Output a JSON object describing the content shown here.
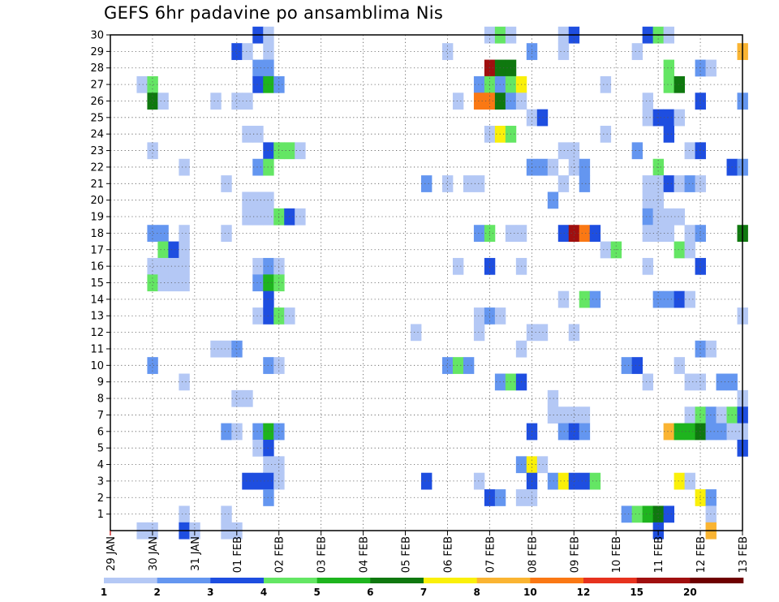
{
  "chart_data": {
    "type": "heatmap",
    "title": "GEFS 6hr padavine po ansamblima Nis",
    "y_ticks": [
      "1",
      "2",
      "3",
      "4",
      "5",
      "6",
      "7",
      "8",
      "9",
      "10",
      "11",
      "12",
      "13",
      "14",
      "15",
      "16",
      "17",
      "18",
      "19",
      "20",
      "21",
      "22",
      "23",
      "24",
      "25",
      "26",
      "27",
      "28",
      "29",
      "30"
    ],
    "x_ticks": [
      "29 JAN",
      "30 JAN",
      "31 JAN",
      "01 FEB",
      "02 FEB",
      "03 FEB",
      "04 FEB",
      "05 FEB",
      "06 FEB",
      "07 FEB",
      "08 FEB",
      "09 FEB",
      "10 FEB",
      "11 FEB",
      "12 FEB",
      "13 FEB"
    ],
    "x_range_steps": [
      0,
      60
    ],
    "y_range_members": [
      0,
      30
    ],
    "legend_colors": [
      "#b4c8f5",
      "#6496f0",
      "#1e4ee0",
      "#64e664",
      "#1eb41e",
      "#0f780f",
      "#faf00a",
      "#fab432",
      "#fa7814",
      "#e6321e",
      "#a00f0f",
      "#6e0000"
    ],
    "legend_labels": [
      "1",
      "2",
      "3",
      "4",
      "5",
      "6",
      "7",
      "8",
      "10",
      "12",
      "15",
      "20"
    ],
    "cells": [
      [
        30,
        14,
        3
      ],
      [
        30,
        15,
        1
      ],
      [
        30,
        36,
        1
      ],
      [
        30,
        37,
        4
      ],
      [
        30,
        38,
        1
      ],
      [
        30,
        43,
        1
      ],
      [
        30,
        44,
        3
      ],
      [
        30,
        51,
        3
      ],
      [
        30,
        52,
        4
      ],
      [
        30,
        53,
        1
      ],
      [
        29,
        12,
        3
      ],
      [
        29,
        13,
        1
      ],
      [
        29,
        15,
        1
      ],
      [
        29,
        32,
        1
      ],
      [
        29,
        40,
        2
      ],
      [
        29,
        43,
        1
      ],
      [
        29,
        50,
        1
      ],
      [
        29,
        60,
        8
      ],
      [
        28,
        14,
        2
      ],
      [
        28,
        15,
        2
      ],
      [
        28,
        36,
        11
      ],
      [
        28,
        37,
        6
      ],
      [
        28,
        38,
        6
      ],
      [
        28,
        53,
        4
      ],
      [
        28,
        56,
        2
      ],
      [
        28,
        57,
        1
      ],
      [
        27,
        3,
        1
      ],
      [
        27,
        4,
        4
      ],
      [
        27,
        14,
        3
      ],
      [
        27,
        15,
        5
      ],
      [
        27,
        16,
        2
      ],
      [
        27,
        35,
        2
      ],
      [
        27,
        36,
        4
      ],
      [
        27,
        37,
        2
      ],
      [
        27,
        38,
        4
      ],
      [
        27,
        39,
        7
      ],
      [
        27,
        47,
        1
      ],
      [
        27,
        53,
        4
      ],
      [
        27,
        54,
        6
      ],
      [
        26,
        4,
        6
      ],
      [
        26,
        5,
        1
      ],
      [
        26,
        10,
        1
      ],
      [
        26,
        12,
        1
      ],
      [
        26,
        13,
        1
      ],
      [
        26,
        33,
        1
      ],
      [
        26,
        35,
        9
      ],
      [
        26,
        36,
        9
      ],
      [
        26,
        37,
        6
      ],
      [
        26,
        38,
        2
      ],
      [
        26,
        39,
        1
      ],
      [
        26,
        51,
        1
      ],
      [
        26,
        56,
        3
      ],
      [
        26,
        60,
        2
      ],
      [
        25,
        40,
        1
      ],
      [
        25,
        41,
        3
      ],
      [
        25,
        51,
        1
      ],
      [
        25,
        52,
        3
      ],
      [
        25,
        53,
        3
      ],
      [
        25,
        54,
        1
      ],
      [
        24,
        13,
        1
      ],
      [
        24,
        14,
        1
      ],
      [
        24,
        36,
        1
      ],
      [
        24,
        37,
        7
      ],
      [
        24,
        38,
        4
      ],
      [
        24,
        47,
        1
      ],
      [
        24,
        53,
        3
      ],
      [
        23,
        4,
        1
      ],
      [
        23,
        15,
        3
      ],
      [
        23,
        16,
        4
      ],
      [
        23,
        17,
        4
      ],
      [
        23,
        18,
        1
      ],
      [
        23,
        43,
        1
      ],
      [
        23,
        44,
        1
      ],
      [
        23,
        50,
        2
      ],
      [
        23,
        55,
        1
      ],
      [
        23,
        56,
        3
      ],
      [
        22,
        7,
        1
      ],
      [
        22,
        14,
        2
      ],
      [
        22,
        15,
        4
      ],
      [
        22,
        40,
        2
      ],
      [
        22,
        41,
        2
      ],
      [
        22,
        42,
        1
      ],
      [
        22,
        44,
        1
      ],
      [
        22,
        45,
        2
      ],
      [
        22,
        52,
        4
      ],
      [
        22,
        59,
        3
      ],
      [
        22,
        60,
        2
      ],
      [
        21,
        11,
        1
      ],
      [
        21,
        30,
        2
      ],
      [
        21,
        32,
        1
      ],
      [
        21,
        34,
        1
      ],
      [
        21,
        35,
        1
      ],
      [
        21,
        43,
        1
      ],
      [
        21,
        45,
        2
      ],
      [
        21,
        51,
        1
      ],
      [
        21,
        52,
        1
      ],
      [
        21,
        53,
        3
      ],
      [
        21,
        54,
        1
      ],
      [
        21,
        55,
        2
      ],
      [
        21,
        56,
        1
      ],
      [
        20,
        13,
        1
      ],
      [
        20,
        14,
        1
      ],
      [
        20,
        15,
        1
      ],
      [
        20,
        42,
        2
      ],
      [
        20,
        51,
        1
      ],
      [
        20,
        52,
        1
      ],
      [
        19,
        13,
        1
      ],
      [
        19,
        14,
        1
      ],
      [
        19,
        15,
        1
      ],
      [
        19,
        16,
        4
      ],
      [
        19,
        17,
        3
      ],
      [
        19,
        18,
        1
      ],
      [
        19,
        51,
        2
      ],
      [
        19,
        52,
        1
      ],
      [
        19,
        53,
        1
      ],
      [
        19,
        54,
        1
      ],
      [
        18,
        4,
        2
      ],
      [
        18,
        5,
        2
      ],
      [
        18,
        7,
        1
      ],
      [
        18,
        11,
        1
      ],
      [
        18,
        35,
        2
      ],
      [
        18,
        36,
        4
      ],
      [
        18,
        38,
        1
      ],
      [
        18,
        39,
        1
      ],
      [
        18,
        43,
        3
      ],
      [
        18,
        44,
        11
      ],
      [
        18,
        45,
        9
      ],
      [
        18,
        46,
        3
      ],
      [
        18,
        51,
        1
      ],
      [
        18,
        52,
        1
      ],
      [
        18,
        53,
        1
      ],
      [
        18,
        55,
        1
      ],
      [
        18,
        56,
        2
      ],
      [
        18,
        60,
        6
      ],
      [
        17,
        5,
        4
      ],
      [
        17,
        6,
        3
      ],
      [
        17,
        7,
        1
      ],
      [
        17,
        47,
        1
      ],
      [
        17,
        48,
        4
      ],
      [
        17,
        54,
        4
      ],
      [
        17,
        55,
        1
      ],
      [
        16,
        4,
        1
      ],
      [
        16,
        5,
        1
      ],
      [
        16,
        6,
        1
      ],
      [
        16,
        7,
        1
      ],
      [
        16,
        14,
        1
      ],
      [
        16,
        15,
        2
      ],
      [
        16,
        16,
        1
      ],
      [
        16,
        33,
        1
      ],
      [
        16,
        36,
        3
      ],
      [
        16,
        39,
        1
      ],
      [
        16,
        51,
        1
      ],
      [
        16,
        56,
        3
      ],
      [
        15,
        4,
        4
      ],
      [
        15,
        5,
        1
      ],
      [
        15,
        6,
        1
      ],
      [
        15,
        7,
        1
      ],
      [
        15,
        14,
        2
      ],
      [
        15,
        15,
        5
      ],
      [
        15,
        16,
        4
      ],
      [
        14,
        15,
        3
      ],
      [
        14,
        43,
        1
      ],
      [
        14,
        45,
        4
      ],
      [
        14,
        46,
        2
      ],
      [
        14,
        52,
        2
      ],
      [
        14,
        53,
        2
      ],
      [
        14,
        54,
        3
      ],
      [
        14,
        55,
        1
      ],
      [
        13,
        14,
        1
      ],
      [
        13,
        15,
        3
      ],
      [
        13,
        16,
        4
      ],
      [
        13,
        17,
        1
      ],
      [
        13,
        35,
        1
      ],
      [
        13,
        36,
        2
      ],
      [
        13,
        37,
        1
      ],
      [
        13,
        60,
        1
      ],
      [
        12,
        29,
        1
      ],
      [
        12,
        35,
        1
      ],
      [
        12,
        40,
        1
      ],
      [
        12,
        41,
        1
      ],
      [
        12,
        44,
        1
      ],
      [
        11,
        10,
        1
      ],
      [
        11,
        11,
        1
      ],
      [
        11,
        12,
        2
      ],
      [
        11,
        39,
        1
      ],
      [
        11,
        56,
        2
      ],
      [
        11,
        57,
        1
      ],
      [
        10,
        4,
        2
      ],
      [
        10,
        15,
        2
      ],
      [
        10,
        16,
        1
      ],
      [
        10,
        32,
        2
      ],
      [
        10,
        33,
        4
      ],
      [
        10,
        34,
        2
      ],
      [
        10,
        49,
        2
      ],
      [
        10,
        50,
        3
      ],
      [
        10,
        54,
        1
      ],
      [
        9,
        7,
        1
      ],
      [
        9,
        37,
        2
      ],
      [
        9,
        38,
        4
      ],
      [
        9,
        39,
        3
      ],
      [
        9,
        51,
        1
      ],
      [
        9,
        55,
        1
      ],
      [
        9,
        56,
        1
      ],
      [
        9,
        58,
        2
      ],
      [
        9,
        59,
        2
      ],
      [
        8,
        12,
        1
      ],
      [
        8,
        13,
        1
      ],
      [
        8,
        42,
        1
      ],
      [
        8,
        60,
        1
      ],
      [
        7,
        42,
        1
      ],
      [
        7,
        43,
        1
      ],
      [
        7,
        44,
        1
      ],
      [
        7,
        45,
        1
      ],
      [
        7,
        55,
        1
      ],
      [
        7,
        56,
        4
      ],
      [
        7,
        57,
        2
      ],
      [
        7,
        58,
        1
      ],
      [
        7,
        59,
        4
      ],
      [
        7,
        60,
        3
      ],
      [
        6,
        11,
        2
      ],
      [
        6,
        12,
        1
      ],
      [
        6,
        14,
        2
      ],
      [
        6,
        15,
        5
      ],
      [
        6,
        16,
        2
      ],
      [
        6,
        40,
        3
      ],
      [
        6,
        43,
        2
      ],
      [
        6,
        44,
        3
      ],
      [
        6,
        45,
        2
      ],
      [
        6,
        53,
        8
      ],
      [
        6,
        54,
        5
      ],
      [
        6,
        55,
        5
      ],
      [
        6,
        56,
        6
      ],
      [
        6,
        57,
        2
      ],
      [
        6,
        58,
        2
      ],
      [
        6,
        59,
        1
      ],
      [
        6,
        60,
        1
      ],
      [
        5,
        14,
        1
      ],
      [
        5,
        15,
        3
      ],
      [
        5,
        60,
        3
      ],
      [
        4,
        15,
        1
      ],
      [
        4,
        16,
        1
      ],
      [
        4,
        39,
        2
      ],
      [
        4,
        40,
        7
      ],
      [
        4,
        41,
        1
      ],
      [
        3,
        13,
        3
      ],
      [
        3,
        14,
        3
      ],
      [
        3,
        15,
        3
      ],
      [
        3,
        16,
        1
      ],
      [
        3,
        30,
        3
      ],
      [
        3,
        35,
        1
      ],
      [
        3,
        40,
        3
      ],
      [
        3,
        42,
        2
      ],
      [
        3,
        43,
        7
      ],
      [
        3,
        44,
        3
      ],
      [
        3,
        45,
        3
      ],
      [
        3,
        46,
        4
      ],
      [
        3,
        54,
        7
      ],
      [
        3,
        55,
        1
      ],
      [
        2,
        15,
        2
      ],
      [
        2,
        36,
        3
      ],
      [
        2,
        37,
        2
      ],
      [
        2,
        39,
        1
      ],
      [
        2,
        40,
        1
      ],
      [
        2,
        56,
        7
      ],
      [
        2,
        57,
        2
      ],
      [
        1,
        7,
        1
      ],
      [
        1,
        11,
        1
      ],
      [
        1,
        49,
        2
      ],
      [
        1,
        50,
        4
      ],
      [
        1,
        51,
        5
      ],
      [
        1,
        52,
        6
      ],
      [
        1,
        53,
        3
      ],
      [
        1,
        57,
        1
      ],
      [
        0,
        3,
        1
      ],
      [
        0,
        4,
        1
      ],
      [
        0,
        7,
        3
      ],
      [
        0,
        8,
        1
      ],
      [
        0,
        11,
        1
      ],
      [
        0,
        12,
        1
      ],
      [
        0,
        52,
        3
      ],
      [
        0,
        57,
        8
      ]
    ]
  }
}
